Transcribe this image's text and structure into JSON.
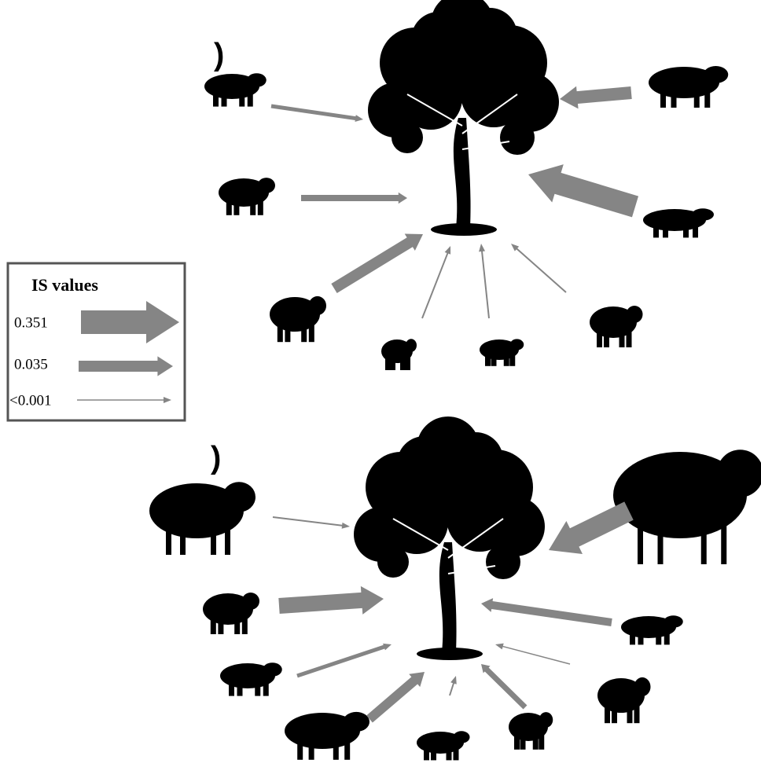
{
  "legend": {
    "title": "IS values",
    "entries": [
      "0.351",
      "0.035",
      "<0.001"
    ]
  },
  "panel_labels": [
    ")",
    ")"
  ]
}
